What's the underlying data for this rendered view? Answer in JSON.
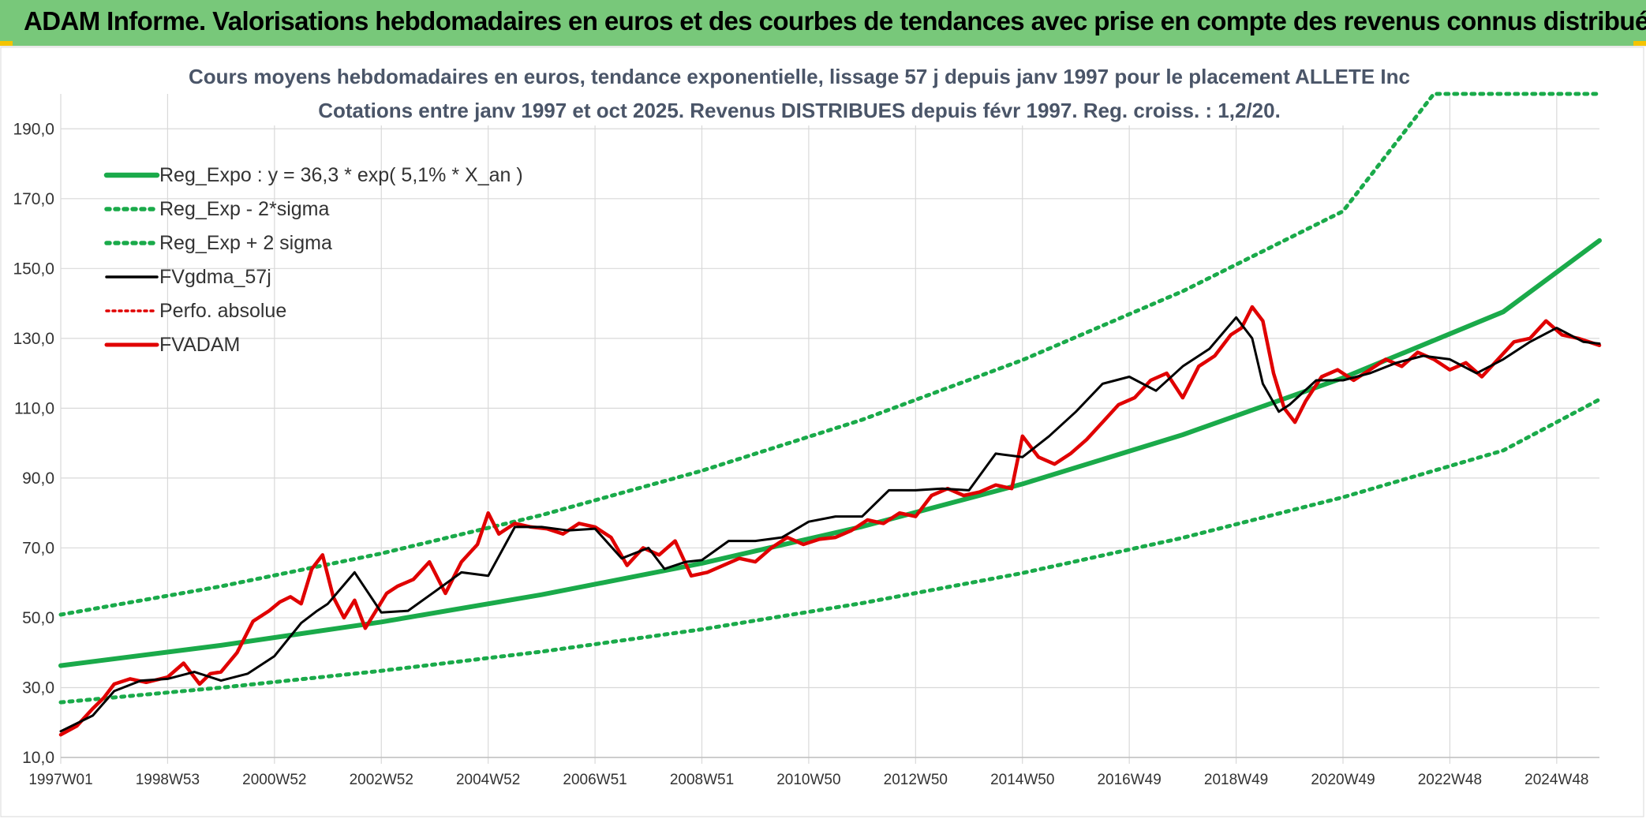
{
  "header": {
    "title": "ADAM Informe. Valorisations hebdomadaires en euros et des courbes de tendances avec prise en compte des revenus connus distribués"
  },
  "chart_data": {
    "type": "line",
    "title_line1": "Cours moyens hebdomadaires en euros, tendance exponentielle, lissage 57 j depuis janv 1997 pour le placement ALLETE Inc",
    "title_line2": "Cotations entre janv 1997 et oct 2025. Revenus DISTRIBUES depuis févr 1997. Reg. croiss. : 1,2/20.",
    "xlabel": "",
    "ylabel": "",
    "x_range": [
      1997.0,
      2025.8
    ],
    "ylim": [
      10,
      200
    ],
    "y_ticks": [
      10,
      30,
      50,
      70,
      90,
      110,
      130,
      150,
      170,
      190
    ],
    "y_tick_labels": [
      "10,0",
      "30,0",
      "50,0",
      "70,0",
      "90,0",
      "110,0",
      "130,0",
      "150,0",
      "170,0",
      "190,0"
    ],
    "x_ticks": [
      1997.0,
      1999.0,
      2001.0,
      2003.0,
      2005.0,
      2007.0,
      2009.0,
      2011.0,
      2013.0,
      2015.0,
      2017.0,
      2019.0,
      2021.0,
      2023.0,
      2025.0
    ],
    "x_tick_labels": [
      "1997W01",
      "1998W53",
      "2000W52",
      "2002W52",
      "2004W52",
      "2006W51",
      "2008W51",
      "2010W50",
      "2012W50",
      "2014W50",
      "2016W49",
      "2018W49",
      "2020W49",
      "2022W48",
      "2024W48"
    ],
    "grid": true,
    "legend_position": "top-left",
    "series": [
      {
        "name": "Reg_Expo : y = 36,3 * exp( 5,1% *  X_an )",
        "color": "#1aaa4a",
        "style": "solid",
        "x": [
          1997.0,
          2000.0,
          2003.0,
          2006.0,
          2009.0,
          2012.0,
          2015.0,
          2018.0,
          2021.0,
          2024.0,
          2025.8
        ],
        "values": [
          36.3,
          42.1,
          48.8,
          56.6,
          65.6,
          76.1,
          88.3,
          102.4,
          118.7,
          137.6,
          158.0
        ]
      },
      {
        "name": "Reg_Exp - 2*sigma",
        "color": "#1aaa4a",
        "style": "dotted",
        "x": [
          1997.0,
          2000.0,
          2003.0,
          2006.0,
          2009.0,
          2012.0,
          2015.0,
          2018.0,
          2021.0,
          2024.0,
          2025.8
        ],
        "values": [
          25.8,
          30.0,
          34.8,
          40.3,
          46.7,
          54.2,
          62.8,
          72.9,
          84.5,
          97.9,
          112.5
        ]
      },
      {
        "name": "Reg_Exp + 2 sigma",
        "color": "#1aaa4a",
        "style": "dotted",
        "x": [
          1997.0,
          2000.0,
          2003.0,
          2006.0,
          2009.0,
          2012.0,
          2015.0,
          2018.0,
          2021.0,
          2022.7,
          2025.8
        ],
        "values": [
          50.9,
          59.0,
          68.4,
          79.4,
          92.1,
          106.7,
          123.8,
          143.5,
          166.4,
          200.0,
          200.0
        ]
      },
      {
        "name": "FVgdma_57j",
        "color": "#000000",
        "style": "solid",
        "x": [
          1997.0,
          1997.6,
          1998.0,
          1998.5,
          1999.0,
          1999.5,
          2000.0,
          2000.5,
          2001.0,
          2001.5,
          2001.8,
          2002.0,
          2002.5,
          2003.0,
          2003.5,
          2004.0,
          2004.5,
          2005.0,
          2005.5,
          2006.0,
          2006.5,
          2007.0,
          2007.5,
          2008.0,
          2008.3,
          2008.7,
          2009.0,
          2009.5,
          2010.0,
          2010.5,
          2011.0,
          2011.5,
          2012.0,
          2012.5,
          2013.0,
          2013.5,
          2014.0,
          2014.5,
          2015.0,
          2015.5,
          2016.0,
          2016.5,
          2017.0,
          2017.5,
          2018.0,
          2018.5,
          2019.0,
          2019.3,
          2019.5,
          2019.8,
          2020.0,
          2020.5,
          2021.0,
          2021.5,
          2022.0,
          2022.5,
          2023.0,
          2023.5,
          2024.0,
          2024.5,
          2025.0,
          2025.5,
          2025.8
        ],
        "values": [
          17.5,
          22.0,
          29.0,
          32.0,
          32.5,
          34.5,
          32.0,
          34.0,
          39.0,
          48.5,
          52.0,
          54.0,
          63.0,
          51.5,
          52.0,
          57.5,
          63.0,
          62.0,
          76.0,
          76.0,
          75.0,
          75.5,
          67.0,
          70.0,
          64.0,
          66.0,
          66.5,
          72.0,
          72.0,
          73.0,
          77.5,
          79.0,
          79.0,
          86.5,
          86.5,
          87.0,
          86.5,
          97.0,
          96.0,
          102.0,
          109.0,
          117.0,
          119.0,
          115.0,
          122.0,
          127.0,
          136.0,
          130.0,
          117.0,
          109.0,
          111.0,
          118.0,
          118.0,
          120.0,
          123.0,
          125.0,
          124.0,
          120.0,
          124.0,
          129.0,
          133.0,
          129.0,
          128.5
        ]
      },
      {
        "name": "Perfo. absolue",
        "color": "#e00000",
        "style": "dotted",
        "x": [
          1997.0,
          2000.0,
          2005.0,
          2010.0,
          2015.0,
          2020.0,
          2025.8
        ],
        "values": [
          16.5,
          34.0,
          77.0,
          72.0,
          97.0,
          107.0,
          129.5
        ]
      },
      {
        "name": "FVADAM",
        "color": "#e00000",
        "style": "solid",
        "x": [
          1997.0,
          1997.3,
          1997.6,
          1997.8,
          1998.0,
          1998.3,
          1998.6,
          1999.0,
          1999.3,
          1999.6,
          1999.8,
          2000.0,
          2000.3,
          2000.6,
          2000.9,
          2001.1,
          2001.3,
          2001.5,
          2001.7,
          2001.9,
          2002.1,
          2002.3,
          2002.5,
          2002.7,
          2002.9,
          2003.1,
          2003.3,
          2003.6,
          2003.9,
          2004.2,
          2004.5,
          2004.8,
          2005.0,
          2005.2,
          2005.5,
          2005.8,
          2006.1,
          2006.4,
          2006.7,
          2007.0,
          2007.3,
          2007.6,
          2007.9,
          2008.2,
          2008.5,
          2008.8,
          2009.1,
          2009.4,
          2009.7,
          2010.0,
          2010.3,
          2010.6,
          2010.9,
          2011.2,
          2011.5,
          2011.8,
          2012.1,
          2012.4,
          2012.7,
          2013.0,
          2013.3,
          2013.6,
          2013.9,
          2014.2,
          2014.5,
          2014.8,
          2015.0,
          2015.3,
          2015.6,
          2015.9,
          2016.2,
          2016.5,
          2016.8,
          2017.1,
          2017.4,
          2017.7,
          2018.0,
          2018.3,
          2018.6,
          2018.9,
          2019.1,
          2019.3,
          2019.5,
          2019.7,
          2019.9,
          2020.1,
          2020.3,
          2020.6,
          2020.9,
          2021.2,
          2021.5,
          2021.8,
          2022.1,
          2022.4,
          2022.7,
          2023.0,
          2023.3,
          2023.6,
          2023.9,
          2024.2,
          2024.5,
          2024.8,
          2025.1,
          2025.4,
          2025.8
        ],
        "values": [
          16.5,
          19.0,
          24.0,
          27.0,
          31.0,
          32.5,
          31.5,
          33.0,
          37.0,
          31.0,
          34.0,
          34.5,
          40.0,
          49.0,
          52.0,
          54.5,
          56.0,
          54.0,
          64.0,
          68.0,
          56.0,
          50.0,
          55.0,
          47.0,
          52.0,
          57.0,
          59.0,
          61.0,
          66.0,
          57.0,
          66.0,
          71.0,
          80.0,
          74.0,
          77.0,
          76.0,
          75.5,
          74.0,
          77.0,
          76.0,
          73.0,
          65.0,
          70.0,
          68.0,
          72.0,
          62.0,
          63.0,
          65.0,
          67.0,
          66.0,
          70.0,
          73.0,
          71.0,
          72.5,
          73.0,
          75.0,
          78.0,
          77.0,
          80.0,
          79.0,
          85.0,
          87.0,
          85.0,
          86.0,
          88.0,
          87.0,
          102.0,
          96.0,
          94.0,
          97.0,
          101.0,
          106.0,
          111.0,
          113.0,
          118.0,
          120.0,
          113.0,
          122.0,
          125.0,
          131.0,
          133.0,
          139.0,
          135.0,
          120.0,
          110.0,
          106.0,
          112.0,
          119.0,
          121.0,
          118.0,
          121.0,
          124.0,
          122.0,
          126.0,
          124.0,
          121.0,
          123.0,
          119.0,
          124.0,
          129.0,
          130.0,
          135.0,
          131.0,
          130.0,
          128.0
        ]
      }
    ]
  }
}
